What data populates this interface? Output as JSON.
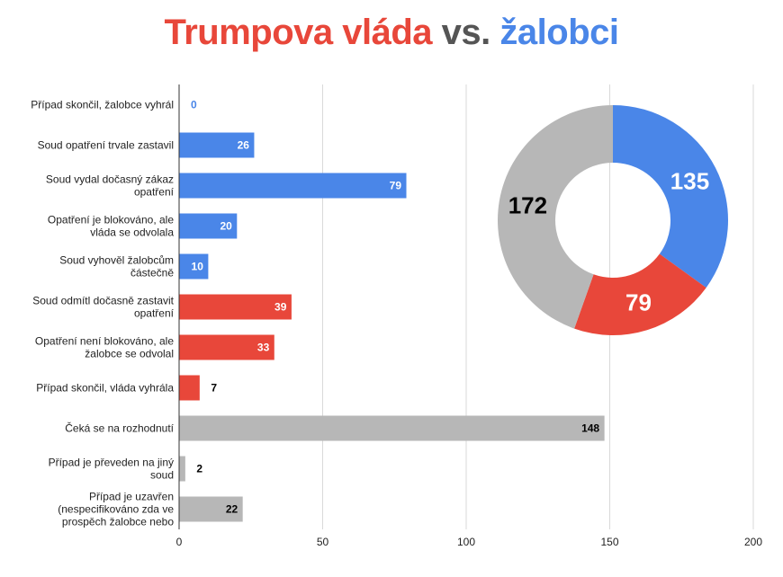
{
  "title": {
    "part1": "Trumpova vláda",
    "part2": " vs. ",
    "part3": "žalobci",
    "color1": "#e8473a",
    "color2": "#555555",
    "color3": "#4a86e8"
  },
  "chart_data": [
    {
      "type": "bar",
      "orientation": "horizontal",
      "categories": [
        [
          "Případ skončil, žalobce vyhrál"
        ],
        [
          "Soud opatření trvale zastavil"
        ],
        [
          "Soud vydal dočasný zákaz",
          "opatření"
        ],
        [
          "Opatření je blokováno, ale",
          "vláda se odvolala"
        ],
        [
          "Soud vyhověl žalobcům",
          "částečně"
        ],
        [
          "Soud odmítl dočasně zastavit",
          "opatření"
        ],
        [
          "Opatření není blokováno, ale",
          "žalobce se odvolal"
        ],
        [
          "Případ skončil, vláda vyhrála"
        ],
        [
          "Čeká se na rozhodnutí"
        ],
        [
          "Případ je převeden na jiný",
          "soud"
        ],
        [
          "Případ je uzavřen",
          "(nespecifikováno zda ve",
          "prospěch žalobce nebo"
        ]
      ],
      "values": [
        0,
        26,
        79,
        20,
        10,
        39,
        33,
        7,
        148,
        2,
        22
      ],
      "colors": [
        "#4a86e8",
        "#4a86e8",
        "#4a86e8",
        "#4a86e8",
        "#4a86e8",
        "#e8473a",
        "#e8473a",
        "#e8473a",
        "#b7b7b7",
        "#b7b7b7",
        "#b7b7b7"
      ],
      "xlim": [
        0,
        200
      ],
      "ticks": [
        0,
        50,
        100,
        150,
        200
      ],
      "grid": true
    },
    {
      "type": "pie",
      "donut": true,
      "values": [
        135,
        79,
        172
      ],
      "colors": [
        "#4a86e8",
        "#e8473a",
        "#b7b7b7"
      ],
      "label_colors": [
        "#ffffff",
        "#ffffff",
        "#000000"
      ]
    }
  ]
}
